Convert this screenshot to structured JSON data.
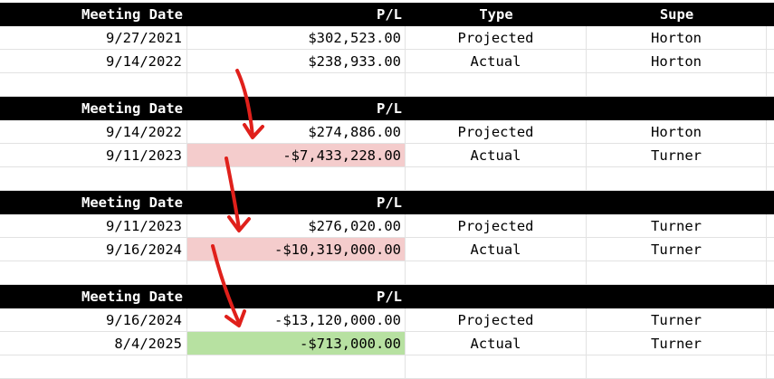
{
  "header_labels": {
    "meeting_date": "Meeting Date",
    "pl": "P/L",
    "type": "Type",
    "supe": "Supe"
  },
  "groups": [
    {
      "rows": [
        {
          "date": "9/27/2021",
          "pl": "$302,523.00",
          "type": "Projected",
          "supe": "Horton"
        },
        {
          "date": "9/14/2022",
          "pl": "$238,933.00",
          "type": "Actual",
          "supe": "Horton"
        }
      ]
    },
    {
      "rows": [
        {
          "date": "9/14/2022",
          "pl": "$274,886.00",
          "type": "Projected",
          "supe": "Horton"
        },
        {
          "date": "9/11/2023",
          "pl": "-$7,433,228.00",
          "type": "Actual",
          "supe": "Turner"
        }
      ]
    },
    {
      "rows": [
        {
          "date": "9/11/2023",
          "pl": "$276,020.00",
          "type": "Projected",
          "supe": "Turner"
        },
        {
          "date": "9/16/2024",
          "pl": "-$10,319,000.00",
          "type": "Actual",
          "supe": "Turner"
        }
      ]
    },
    {
      "rows": [
        {
          "date": "9/16/2024",
          "pl": "-$13,120,000.00",
          "type": "Projected",
          "supe": "Turner"
        },
        {
          "date": "8/4/2025",
          "pl": "-$713,000.00",
          "type": "Actual",
          "supe": "Turner"
        }
      ]
    }
  ],
  "colors": {
    "header_bg": "#000000",
    "negative_highlight": "#f4cccc",
    "positive_highlight": "#b7e1a1",
    "arrow": "#e0201b"
  }
}
